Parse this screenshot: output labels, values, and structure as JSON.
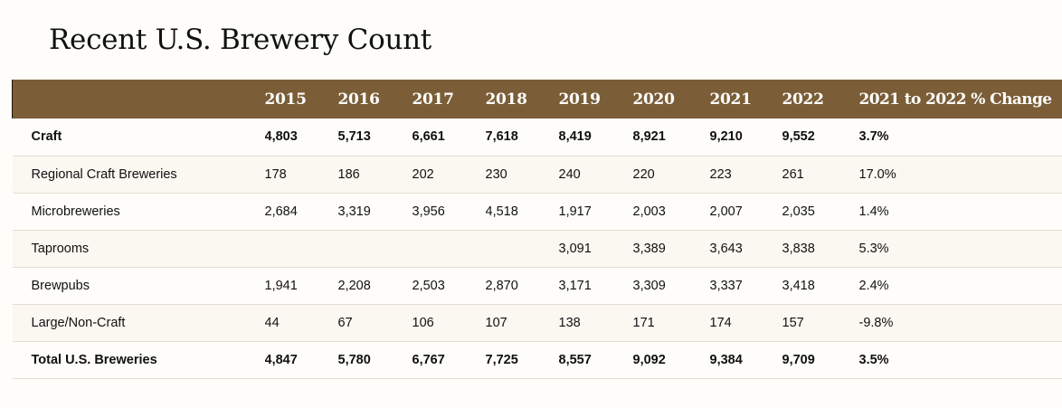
{
  "page": {
    "title": "Recent U.S. Brewery Count"
  },
  "chart_data": {
    "type": "table",
    "title": "Recent U.S. Brewery Count",
    "columns": [
      "",
      "2015",
      "2016",
      "2017",
      "2018",
      "2019",
      "2020",
      "2021",
      "2022",
      "2021 to 2022 % Change"
    ],
    "rows": [
      {
        "label": "Craft",
        "bold": true,
        "values": [
          "4,803",
          "5,713",
          "6,661",
          "7,618",
          "8,419",
          "8,921",
          "9,210",
          "9,552",
          "3.7%"
        ]
      },
      {
        "label": "Regional Craft Breweries",
        "bold": false,
        "values": [
          "178",
          "186",
          "202",
          "230",
          "240",
          "220",
          "223",
          "261",
          "17.0%"
        ]
      },
      {
        "label": "Microbreweries",
        "bold": false,
        "values": [
          "2,684",
          "3,319",
          "3,956",
          "4,518",
          "1,917",
          "2,003",
          "2,007",
          "2,035",
          "1.4%"
        ]
      },
      {
        "label": "Taprooms",
        "bold": false,
        "values": [
          "",
          "",
          "",
          "",
          "3,091",
          "3,389",
          "3,643",
          "3,838",
          "5.3%"
        ]
      },
      {
        "label": "Brewpubs",
        "bold": false,
        "values": [
          "1,941",
          "2,208",
          "2,503",
          "2,870",
          "3,171",
          "3,309",
          "3,337",
          "3,418",
          "2.4%"
        ]
      },
      {
        "label": "Large/Non-Craft",
        "bold": false,
        "values": [
          "44",
          "67",
          "106",
          "107",
          "138",
          "171",
          "174",
          "157",
          "-9.8%"
        ]
      },
      {
        "label": "Total U.S. Breweries",
        "bold": true,
        "values": [
          "4,847",
          "5,780",
          "6,767",
          "7,725",
          "8,557",
          "9,092",
          "9,384",
          "9,709",
          "3.5%"
        ]
      }
    ]
  },
  "colors": {
    "header_bg": "#7b5e37",
    "header_text": "#ffffff",
    "row_alt_bg": "#fbf7f1",
    "page_bg": "#fefdf9"
  }
}
